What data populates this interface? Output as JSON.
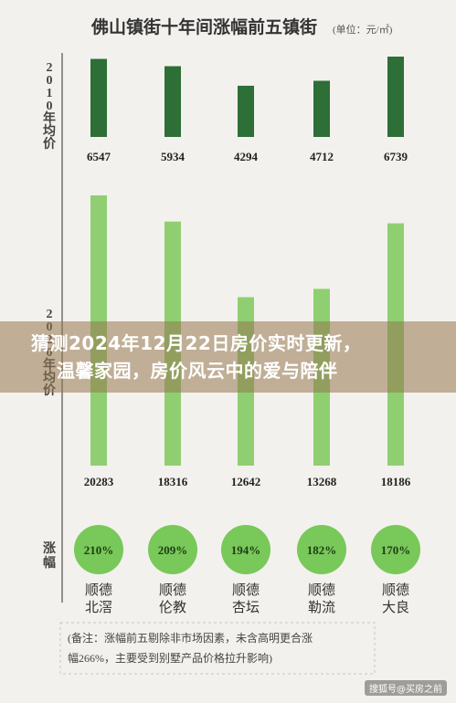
{
  "chart_data": {
    "type": "bar",
    "title": "佛山镇街十年间涨幅前五镇街",
    "unit": "(单位：元/㎡)",
    "panel_2010_label": "2010年均价",
    "panel_2020_label": "2020年均价",
    "growth_label": "涨幅",
    "categories": [
      "顺德北滘",
      "顺德伦教",
      "顺德杏坛",
      "顺德勒流",
      "顺德大良"
    ],
    "series": [
      {
        "name": "2010年均价",
        "color": "#2e6e37",
        "values": [
          6547,
          5934,
          4294,
          4712,
          6739
        ]
      },
      {
        "name": "2020年均价",
        "color": "#8fcf72",
        "values": [
          20283,
          18316,
          12642,
          13268,
          18186
        ]
      }
    ],
    "growth": [
      "210%",
      "209%",
      "194%",
      "182%",
      "170%"
    ],
    "growth_color": "#79c85a",
    "note_line1": "(备注：涨幅前五剔除非市场因素，未含高明更合涨",
    "note_line2": "幅266%，主要受到别墅产品价格拉升影响)"
  },
  "headline": {
    "line1": "猜测2024年12月22日房价实时更新，",
    "line2": "温馨家园，房价风云中的爱与陪伴"
  },
  "watermark": "搜狐号@买房之前"
}
